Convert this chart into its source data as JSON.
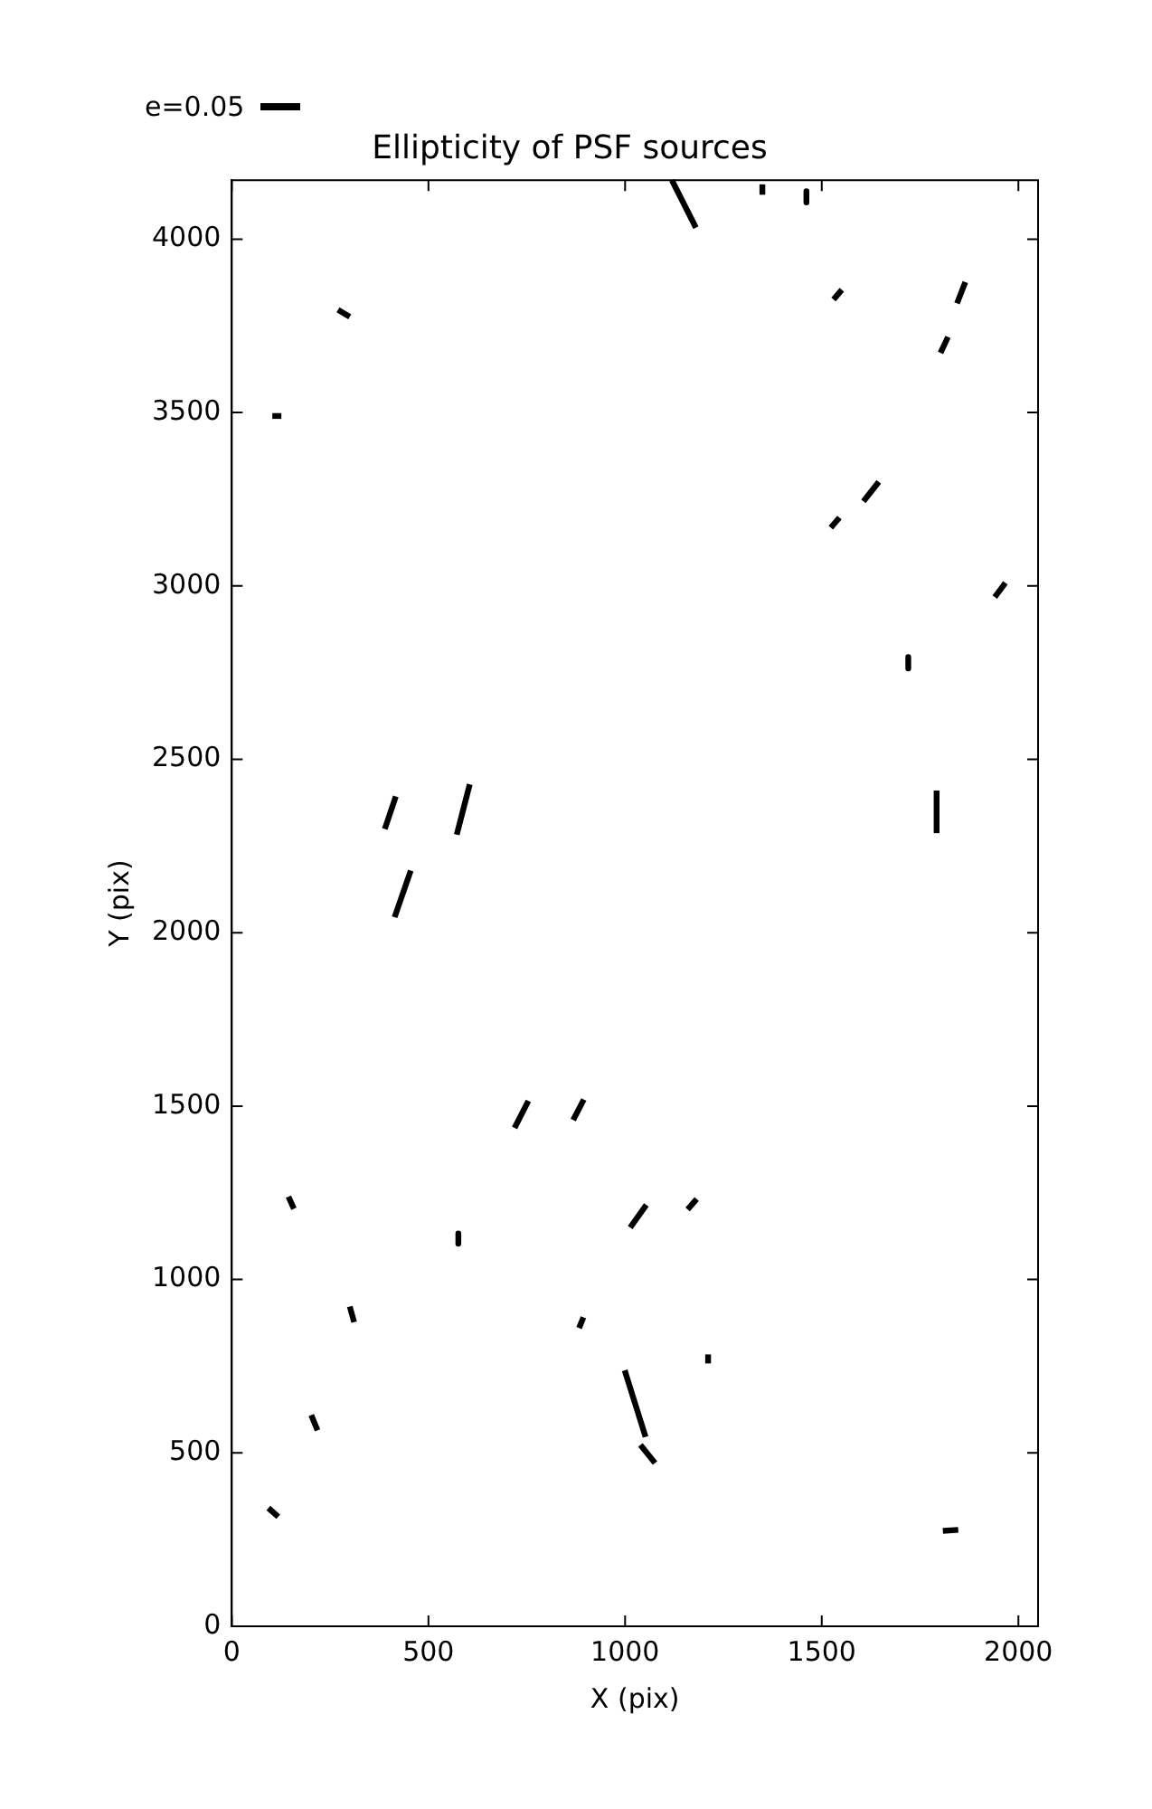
{
  "chart_data": {
    "type": "line",
    "title": "Ellipticity of PSF sources",
    "xlabel": "X (pix)",
    "ylabel": "Y (pix)",
    "annotations": [
      "e=0.05"
    ],
    "xlim": [
      0,
      2050
    ],
    "xticks": [
      0,
      500,
      1000,
      1500,
      2000
    ],
    "ylim": [
      0,
      4170
    ],
    "yticks": [
      0,
      500,
      1000,
      1500,
      2000,
      2500,
      3000,
      3500,
      4000
    ],
    "series": [
      {
        "color": "#000000",
        "x": [
          1119,
          1180
        ],
        "values": [
          4170,
          4033
        ]
      },
      {
        "color": "#000000",
        "x": [
          1349,
          1349
        ],
        "values": [
          4128,
          4158
        ]
      },
      {
        "color": "#000000",
        "x": [
          1461,
          1461
        ],
        "values": [
          4138,
          4106
        ]
      },
      {
        "color": "#000000",
        "x": [
          270,
          300
        ],
        "values": [
          3796,
          3776
        ]
      },
      {
        "color": "#000000",
        "x": [
          103,
          126
        ],
        "values": [
          3490,
          3490
        ]
      },
      {
        "color": "#000000",
        "x": [
          1530,
          1551
        ],
        "values": [
          3826,
          3854
        ]
      },
      {
        "color": "#000000",
        "x": [
          1844,
          1865
        ],
        "values": [
          3815,
          3876
        ]
      },
      {
        "color": "#000000",
        "x": [
          1802,
          1821
        ],
        "values": [
          3672,
          3718
        ]
      },
      {
        "color": "#000000",
        "x": [
          1606,
          1645
        ],
        "values": [
          3244,
          3300
        ]
      },
      {
        "color": "#000000",
        "x": [
          1523,
          1545
        ],
        "values": [
          3168,
          3197
        ]
      },
      {
        "color": "#000000",
        "x": [
          1940,
          1967
        ],
        "values": [
          2968,
          3009
        ]
      },
      {
        "color": "#000000",
        "x": [
          1720,
          1720
        ],
        "values": [
          2795,
          2762
        ]
      },
      {
        "color": "#000000",
        "x": [
          389,
          417
        ],
        "values": [
          2299,
          2393
        ]
      },
      {
        "color": "#000000",
        "x": [
          572,
          605
        ],
        "values": [
          2283,
          2428
        ]
      },
      {
        "color": "#000000",
        "x": [
          1792,
          1792
        ],
        "values": [
          2287,
          2410
        ]
      },
      {
        "color": "#000000",
        "x": [
          414,
          455
        ],
        "values": [
          2045,
          2179
        ]
      },
      {
        "color": "#000000",
        "x": [
          719,
          754
        ],
        "values": [
          1437,
          1515
        ]
      },
      {
        "color": "#000000",
        "x": [
          868,
          895
        ],
        "values": [
          1460,
          1519
        ]
      },
      {
        "color": "#000000",
        "x": [
          144,
          158
        ],
        "values": [
          1239,
          1204
        ]
      },
      {
        "color": "#000000",
        "x": [
          576,
          576
        ],
        "values": [
          1133,
          1103
        ]
      },
      {
        "color": "#000000",
        "x": [
          1013,
          1054
        ],
        "values": [
          1150,
          1215
        ]
      },
      {
        "color": "#000000",
        "x": [
          1159,
          1182
        ],
        "values": [
          1202,
          1232
        ]
      },
      {
        "color": "#000000",
        "x": [
          300,
          311
        ],
        "values": [
          922,
          877
        ]
      },
      {
        "color": "#000000",
        "x": [
          883,
          894
        ],
        "values": [
          860,
          891
        ]
      },
      {
        "color": "#000000",
        "x": [
          1211,
          1211
        ],
        "values": [
          758,
          784
        ]
      },
      {
        "color": "#000000",
        "x": [
          999,
          1052
        ],
        "values": [
          738,
          546
        ]
      },
      {
        "color": "#000000",
        "x": [
          1039,
          1076
        ],
        "values": [
          523,
          471
        ]
      },
      {
        "color": "#000000",
        "x": [
          202,
          218
        ],
        "values": [
          609,
          565
        ]
      },
      {
        "color": "#000000",
        "x": [
          93,
          118
        ],
        "values": [
          341,
          316
        ]
      },
      {
        "color": "#000000",
        "x": [
          1808,
          1847
        ],
        "values": [
          275,
          278
        ]
      }
    ]
  }
}
